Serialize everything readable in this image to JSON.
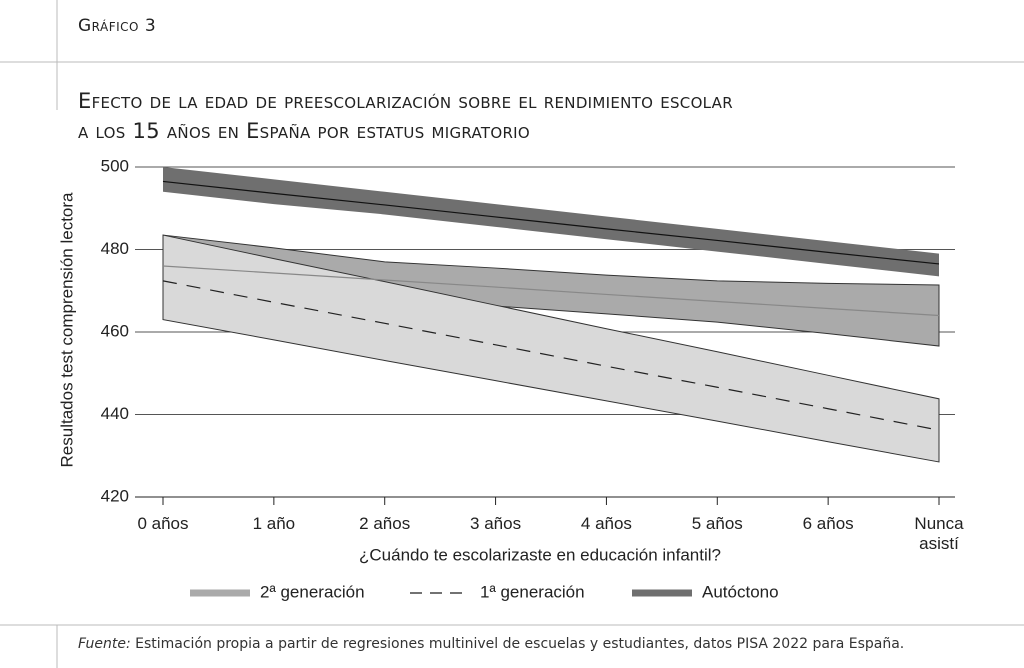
{
  "header": "Gráfico 3",
  "chart_data": {
    "type": "band-line",
    "title": [
      "Efecto de la edad de preescolarización sobre el rendimiento escolar",
      "a los 15 años en España por estatus migratorio"
    ],
    "ylabel": "Resultados test comprensión lectora",
    "xlabel": "¿Cuándo te escolarizaste en educación infantil?",
    "categories": [
      "0 años",
      "1 año",
      "2 años",
      "3 años",
      "4 años",
      "5 años",
      "6 años",
      "Nunca asistí"
    ],
    "ylim": [
      420,
      500
    ],
    "yticks": [
      420,
      440,
      460,
      480,
      500
    ],
    "grid": true,
    "series": [
      {
        "name": "Autóctono",
        "color": "#6f6f6f",
        "line_color": "#111",
        "dashed": false,
        "values": [
          496.5,
          493.6,
          490.8,
          487.9,
          485.0,
          482.2,
          479.3,
          476.5
        ],
        "upper": [
          500,
          497,
          494,
          491,
          488,
          485,
          482,
          479
        ],
        "lower": [
          494,
          491,
          488.5,
          485.5,
          482.5,
          479.5,
          476.5,
          473.5
        ]
      },
      {
        "name": "2ª generación",
        "color": "#aaaaaa",
        "line_color": "#888",
        "dashed": false,
        "values": [
          476,
          474.3,
          472.6,
          470.9,
          469.1,
          467.4,
          465.7,
          464
        ],
        "upper": [
          483.5,
          480.4,
          477,
          475.5,
          473.8,
          472.4,
          471.8,
          471.4
        ],
        "lower": [
          468.5,
          468.2,
          468.2,
          466.3,
          464.4,
          462.4,
          459.6,
          456.6
        ]
      },
      {
        "name": "1ª generación",
        "color": "#d9d9d9",
        "line_color": "#222",
        "dashed": true,
        "values": [
          472.4,
          467.2,
          462.1,
          456.9,
          451.7,
          446.6,
          441.4,
          436.2
        ],
        "upper": [
          483.5,
          477.8,
          472.2,
          466.5,
          460.8,
          455.2,
          449.5,
          443.8
        ],
        "lower": [
          463,
          458.1,
          453.1,
          448.2,
          443.3,
          438.4,
          433.4,
          428.5
        ]
      }
    ],
    "legend_order": [
      1,
      2,
      0
    ]
  },
  "source": {
    "label": "Fuente:",
    "text": "Estimación propia a partir de regresiones multinivel de escuelas y estudiantes, datos PISA 2022 para España."
  }
}
